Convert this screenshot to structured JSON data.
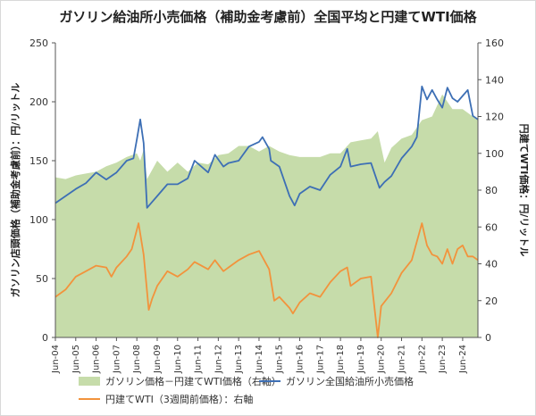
{
  "chart_data": {
    "type": "area",
    "title": "ガソリン給油所小売価格（補助金考慮前）全国平均と円建てWTI価格",
    "ylabel_left": "ガソリン店頭価格（補助金考慮前）：円/リットル",
    "ylabel_right": "円建てWTI価格：円/リットル",
    "ylim_left": [
      0,
      250
    ],
    "ylim_right": [
      0,
      160
    ],
    "yticks_left": [
      "0",
      "50",
      "100",
      "150",
      "200",
      "250"
    ],
    "yticks_right": [
      "0",
      "20",
      "40",
      "60",
      "80",
      "100",
      "120",
      "140",
      "160"
    ],
    "xticks": [
      "Jun-04",
      "Jun-05",
      "Jun-06",
      "Jun-07",
      "Jun-08",
      "Jun-09",
      "Jun-10",
      "Jun-11",
      "Jun-12",
      "Jun-13",
      "Jun-14",
      "Jun-15",
      "Jun-16",
      "Jun-17",
      "Jun-18",
      "Jun-19",
      "Jun-20",
      "Jun-21",
      "Jun-22",
      "Jun-23",
      "Jun-24"
    ],
    "x_start": "2004-06",
    "x_end": "2025-03",
    "grid": false,
    "legend_position": "bottom",
    "series": [
      {
        "name": "ガソリン価格－円建てWTI価格（右軸）",
        "axis": "right",
        "kind": "area",
        "color": "#c6dcaa",
        "x": [
          "2004-06",
          "2004-12",
          "2005-06",
          "2005-12",
          "2006-06",
          "2006-12",
          "2007-06",
          "2007-12",
          "2008-06",
          "2008-08",
          "2008-10",
          "2008-12",
          "2009-06",
          "2009-12",
          "2010-06",
          "2010-12",
          "2011-06",
          "2011-12",
          "2012-06",
          "2012-12",
          "2013-06",
          "2013-12",
          "2014-06",
          "2014-12",
          "2015-06",
          "2015-12",
          "2016-06",
          "2016-12",
          "2017-06",
          "2017-12",
          "2018-06",
          "2018-12",
          "2019-06",
          "2019-12",
          "2020-04",
          "2020-08",
          "2020-12",
          "2021-06",
          "2021-12",
          "2022-06",
          "2022-12",
          "2023-06",
          "2023-12",
          "2024-06",
          "2024-12",
          "2025-03"
        ],
        "values": [
          87,
          86,
          88,
          89,
          90,
          93,
          95,
          98,
          100,
          96,
          102,
          86,
          96,
          90,
          95,
          90,
          95,
          94,
          99,
          100,
          104,
          104,
          101,
          104,
          101,
          99,
          98,
          98,
          98,
          100,
          100,
          106,
          107,
          108,
          112,
          95,
          103,
          108,
          110,
          118,
          120,
          132,
          124,
          124,
          120,
          118
        ]
      },
      {
        "name": "ガソリン全国給油所小売価格",
        "axis": "left",
        "kind": "line",
        "color": "#3d6fb5",
        "x": [
          "2004-06",
          "2004-12",
          "2005-06",
          "2005-12",
          "2006-06",
          "2006-12",
          "2007-06",
          "2007-12",
          "2008-04",
          "2008-06",
          "2008-08",
          "2008-10",
          "2008-12",
          "2009-03",
          "2009-06",
          "2009-12",
          "2010-06",
          "2010-12",
          "2011-04",
          "2011-12",
          "2012-04",
          "2012-09",
          "2012-12",
          "2013-06",
          "2013-12",
          "2014-06",
          "2014-08",
          "2014-12",
          "2015-01",
          "2015-06",
          "2015-12",
          "2016-03",
          "2016-06",
          "2016-12",
          "2017-06",
          "2017-12",
          "2018-06",
          "2018-10",
          "2018-12",
          "2019-06",
          "2019-12",
          "2020-05",
          "2020-08",
          "2020-12",
          "2021-06",
          "2021-12",
          "2022-03",
          "2022-06",
          "2022-09",
          "2022-12",
          "2023-03",
          "2023-06",
          "2023-09",
          "2023-12",
          "2024-03",
          "2024-06",
          "2024-09",
          "2024-12",
          "2025-03"
        ],
        "values": [
          114,
          120,
          126,
          131,
          140,
          134,
          140,
          150,
          152,
          168,
          185,
          165,
          110,
          115,
          120,
          130,
          130,
          135,
          150,
          140,
          155,
          145,
          148,
          150,
          162,
          166,
          170,
          160,
          150,
          145,
          120,
          112,
          122,
          128,
          125,
          138,
          145,
          160,
          145,
          147,
          148,
          127,
          132,
          137,
          152,
          162,
          170,
          213,
          202,
          210,
          202,
          195,
          212,
          203,
          200,
          205,
          210,
          188,
          185
        ]
      },
      {
        "name": "円建てWTI（3週間前価格）：右軸",
        "axis": "right",
        "kind": "line",
        "color": "#f2933c",
        "x": [
          "2004-06",
          "2004-12",
          "2005-06",
          "2005-12",
          "2006-06",
          "2006-12",
          "2007-03",
          "2007-06",
          "2007-12",
          "2008-03",
          "2008-07",
          "2008-10",
          "2009-01",
          "2009-03",
          "2009-06",
          "2009-12",
          "2010-06",
          "2010-12",
          "2011-04",
          "2011-12",
          "2012-04",
          "2012-09",
          "2012-12",
          "2013-06",
          "2013-12",
          "2014-06",
          "2014-12",
          "2015-03",
          "2015-06",
          "2015-12",
          "2016-02",
          "2016-06",
          "2016-12",
          "2017-06",
          "2017-12",
          "2018-06",
          "2018-10",
          "2018-12",
          "2019-06",
          "2019-12",
          "2020-04",
          "2020-06",
          "2020-12",
          "2021-06",
          "2021-12",
          "2022-03",
          "2022-06",
          "2022-09",
          "2022-12",
          "2023-03",
          "2023-06",
          "2023-09",
          "2023-12",
          "2024-03",
          "2024-06",
          "2024-09",
          "2024-12",
          "2025-03"
        ],
        "values": [
          22,
          26,
          33,
          36,
          39,
          38,
          33,
          38,
          44,
          48,
          62,
          45,
          15,
          21,
          28,
          36,
          33,
          37,
          41,
          37,
          42,
          36,
          38,
          42,
          45,
          47,
          37,
          20,
          22,
          16,
          13,
          19,
          24,
          22,
          30,
          36,
          38,
          28,
          32,
          33,
          0,
          17,
          24,
          35,
          42,
          52,
          62,
          50,
          45,
          44,
          40,
          48,
          40,
          48,
          50,
          44,
          44,
          42
        ]
      }
    ]
  }
}
